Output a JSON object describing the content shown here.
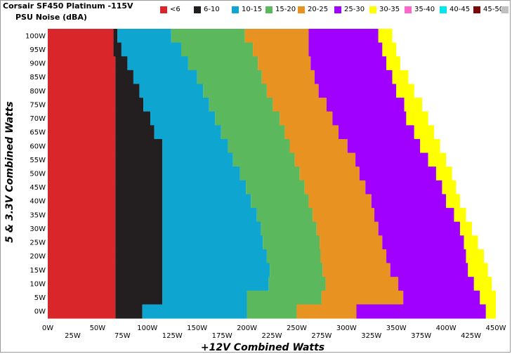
{
  "title": "Corsair SF450 Platinum -115V",
  "subtitle": "PSU Noise (dBA)",
  "chart_data": {
    "type": "heatmap",
    "xlabel": "+12V Combined Watts",
    "ylabel": "5 & 3.3V Combined Watts",
    "xlim": [
      0,
      450
    ],
    "ylim": [
      0,
      100
    ],
    "x_ticks_row1": [
      "0W",
      "50W",
      "100W",
      "150W",
      "200W",
      "250W",
      "300W",
      "350W",
      "400W",
      "450W"
    ],
    "x_ticks_row2": [
      "25W",
      "75W",
      "125W",
      "175W",
      "225W",
      "275W",
      "325W",
      "375W",
      "425W"
    ],
    "y_ticks": [
      "100W",
      "95W",
      "90W",
      "85W",
      "80W",
      "75W",
      "70W",
      "65W",
      "60W",
      "55W",
      "50W",
      "45W",
      "40W",
      "35W",
      "30W",
      "25W",
      "20W",
      "15W",
      "10W",
      "5W",
      "0W"
    ],
    "legend": [
      {
        "label": "<6",
        "color": "#d9262a"
      },
      {
        "label": "6-10",
        "color": "#231f20"
      },
      {
        "label": "10-15",
        "color": "#0ea6d0"
      },
      {
        "label": "15-20",
        "color": "#5cb85c"
      },
      {
        "label": "20-25",
        "color": "#e89321"
      },
      {
        "label": "25-30",
        "color": "#9f00ff"
      },
      {
        "label": "30-35",
        "color": "#ffff00"
      },
      {
        "label": "35-40",
        "color": "#ff66cc"
      },
      {
        "label": "40-45",
        "color": "#00e5ee"
      },
      {
        "label": "45-50",
        "color": "#7a0a0a"
      },
      {
        "label": ">50",
        "color": "#c0c0c0"
      }
    ],
    "band_upper_bounds_watts": {
      "rows_W": [
        100,
        95,
        90,
        85,
        80,
        75,
        70,
        65,
        60,
        55,
        50,
        45,
        40,
        35,
        30,
        25,
        20,
        15,
        10,
        5,
        0
      ],
      "lt6": [
        66,
        66,
        68,
        68,
        68,
        68,
        68,
        68,
        68,
        68,
        68,
        68,
        68,
        68,
        68,
        68,
        68,
        68,
        68,
        68,
        68
      ],
      "b6_10": [
        70,
        74,
        80,
        86,
        92,
        96,
        103,
        107,
        115,
        115,
        115,
        115,
        115,
        115,
        115,
        115,
        115,
        115,
        115,
        115,
        95
      ],
      "b10_15": [
        124,
        134,
        141,
        150,
        156,
        162,
        168,
        174,
        181,
        186,
        193,
        199,
        204,
        210,
        214,
        216,
        220,
        223,
        222,
        200,
        200
      ],
      "b15_20": [
        198,
        206,
        211,
        215,
        220,
        226,
        233,
        238,
        243,
        248,
        253,
        258,
        262,
        266,
        270,
        273,
        274,
        276,
        279,
        275,
        250
      ],
      "b20_25": [
        262,
        262,
        264,
        268,
        272,
        280,
        286,
        292,
        301,
        309,
        313,
        319,
        325,
        328,
        332,
        336,
        340,
        344,
        352,
        357,
        310
      ],
      "b25_30": [
        332,
        336,
        340,
        346,
        350,
        358,
        360,
        368,
        374,
        382,
        390,
        396,
        400,
        408,
        414,
        418,
        420,
        422,
        428,
        434,
        440
      ],
      "b30_35": [
        346,
        350,
        354,
        362,
        368,
        376,
        382,
        388,
        394,
        400,
        406,
        410,
        414,
        420,
        426,
        432,
        438,
        442,
        446,
        450,
        452
      ]
    }
  }
}
